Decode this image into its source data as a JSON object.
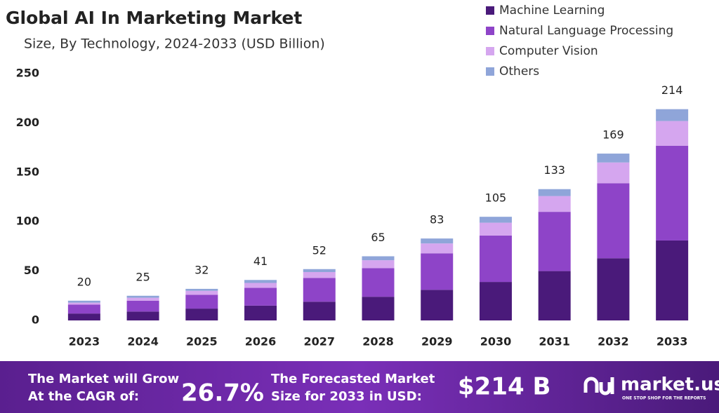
{
  "chart_data": {
    "type": "stacked-bar",
    "title": "Global AI In Marketing Market",
    "subtitle": "Size, By Technology, 2024-2033 (USD Billion)",
    "categories": [
      "2023",
      "2024",
      "2025",
      "2026",
      "2027",
      "2028",
      "2029",
      "2030",
      "2031",
      "2032",
      "2033"
    ],
    "series": [
      {
        "name": "Machine Learning",
        "color": "#4a1a7a",
        "values": [
          7,
          9,
          12,
          15,
          19,
          24,
          31,
          39,
          50,
          63,
          81
        ]
      },
      {
        "name": "Natural Language Processing",
        "color": "#8e44c8",
        "values": [
          9,
          11,
          14,
          18,
          24,
          29,
          37,
          47,
          60,
          76,
          96
        ]
      },
      {
        "name": "Computer Vision",
        "color": "#d5a6ef",
        "values": [
          2,
          3,
          4,
          5,
          6,
          8,
          10,
          13,
          16,
          21,
          25
        ]
      },
      {
        "name": "Others",
        "color": "#8fa5d9",
        "values": [
          2,
          2,
          2,
          3,
          3,
          4,
          5,
          6,
          7,
          9,
          12
        ]
      }
    ],
    "total_labels": [
      20,
      25,
      32,
      41,
      52,
      65,
      83,
      105,
      133,
      169,
      214
    ],
    "ylim": [
      0,
      250
    ],
    "yticks": [
      0,
      50,
      100,
      150,
      200,
      250
    ],
    "grid": false
  },
  "footer": {
    "cagr_text": [
      "The Market will Grow",
      "At the CAGR of:"
    ],
    "cagr": "26.7%",
    "forecast_text": [
      "The Forecasted Market",
      "Size for 2033 in USD:"
    ],
    "forecast": "$214 B",
    "brand": "market.us",
    "tagline": "ONE STOP SHOP FOR THE REPORTS"
  }
}
